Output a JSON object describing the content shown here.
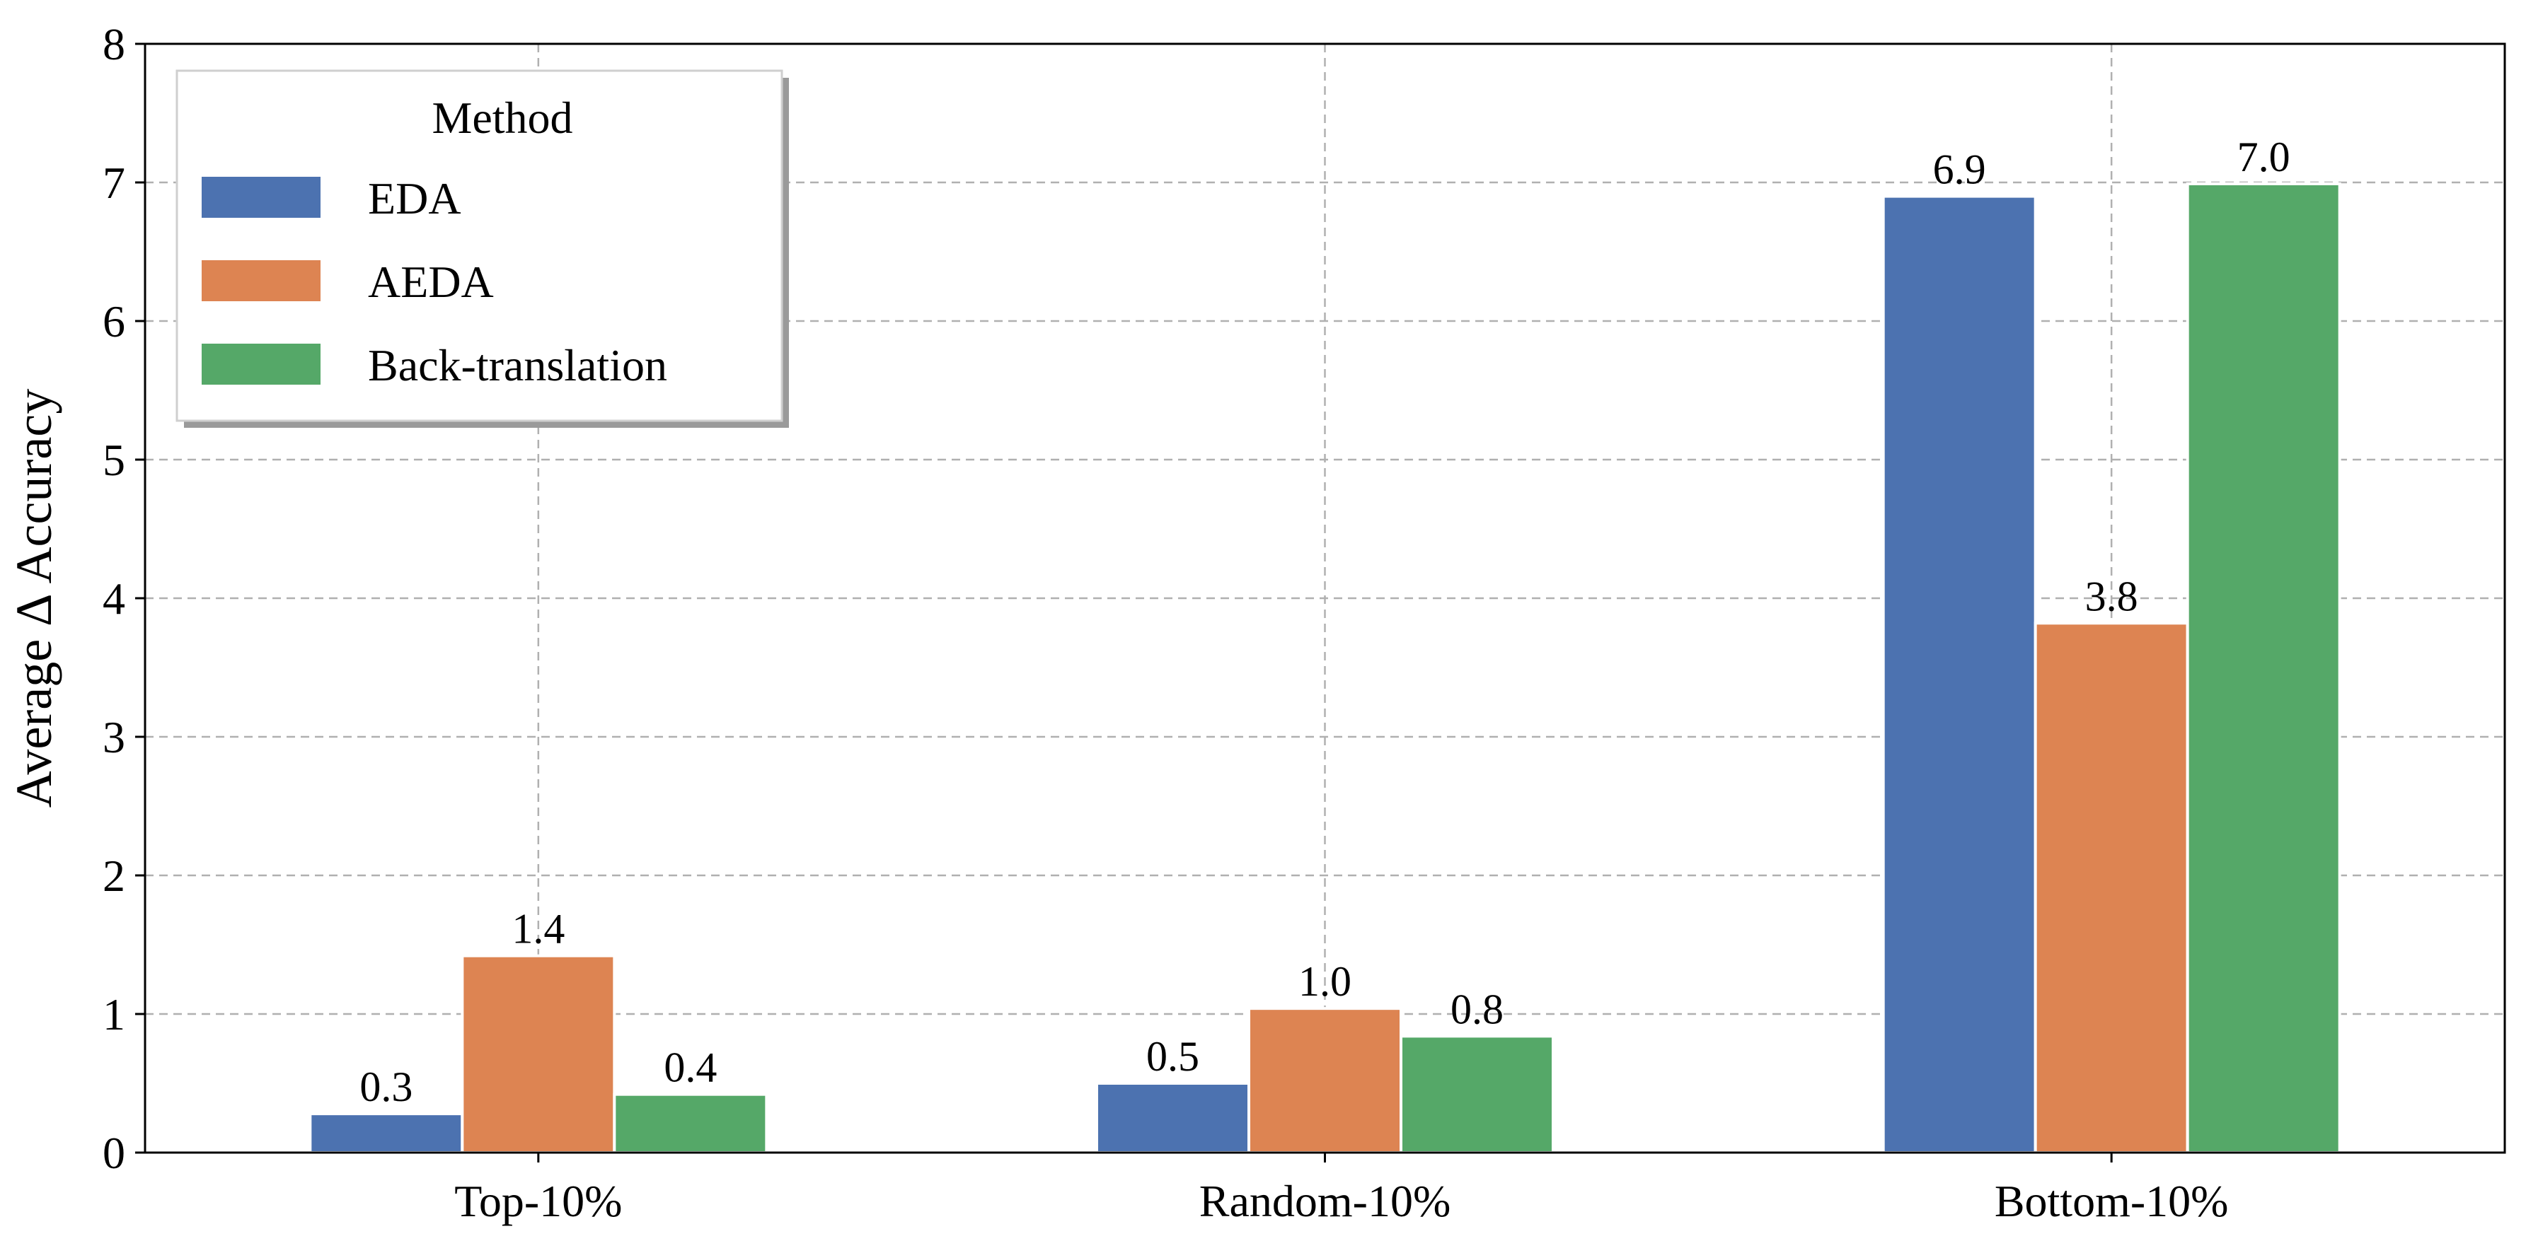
{
  "chart_data": {
    "type": "bar",
    "title": "",
    "xlabel": "",
    "ylabel": "Average Δ Accuracy",
    "categories": [
      "Top-10%",
      "Random-10%",
      "Bottom-10%"
    ],
    "ylim": [
      0,
      8
    ],
    "yticks": [
      0,
      1,
      2,
      3,
      4,
      5,
      6,
      7,
      8
    ],
    "grid": true,
    "legend": {
      "title": "Method",
      "placement": "top-left"
    },
    "series": [
      {
        "name": "EDA",
        "color": "#4c72b0",
        "values": [
          0.28,
          0.5,
          6.9
        ],
        "labels": [
          "0.3",
          "0.5",
          "6.9"
        ]
      },
      {
        "name": "AEDA",
        "color": "#dd8452",
        "values": [
          1.42,
          1.04,
          3.82
        ],
        "labels": [
          "1.4",
          "1.0",
          "3.8"
        ]
      },
      {
        "name": "Back-translation",
        "color": "#55a868",
        "values": [
          0.42,
          0.84,
          6.99
        ],
        "labels": [
          "0.4",
          "0.8",
          "7.0"
        ]
      }
    ]
  }
}
